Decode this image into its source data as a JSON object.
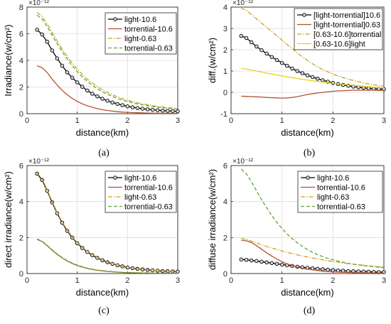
{
  "captions": [
    "(a)",
    "(b)",
    "(c)",
    "(d)"
  ],
  "chart_data": [
    {
      "type": "line",
      "ylabel": "Irradiance(w/cm²)",
      "xlabel": "distance(km)",
      "exponent_label": "×10⁻¹²",
      "xlim": [
        0,
        3
      ],
      "ylim": [
        0,
        8
      ],
      "xticks": [
        "0",
        "1",
        "2",
        "3"
      ],
      "yticks": [
        "0",
        "2",
        "4",
        "6",
        "8"
      ],
      "grid": true,
      "legend_position": "top-right",
      "x": [
        0.2,
        0.3,
        0.4,
        0.5,
        0.6,
        0.7,
        0.8,
        0.9,
        1.0,
        1.1,
        1.2,
        1.3,
        1.4,
        1.5,
        1.6,
        1.7,
        1.8,
        1.9,
        2.0,
        2.1,
        2.2,
        2.3,
        2.4,
        2.5,
        2.6,
        2.7,
        2.8,
        2.9,
        3.0
      ],
      "series": [
        {
          "name": "light-10.6",
          "color": "#000000",
          "dash": "solid",
          "marker": true,
          "values": [
            6.3,
            5.95,
            5.4,
            4.75,
            4.15,
            3.6,
            3.1,
            2.7,
            2.35,
            2.02,
            1.74,
            1.5,
            1.3,
            1.12,
            0.97,
            0.84,
            0.73,
            0.64,
            0.55,
            0.48,
            0.42,
            0.37,
            0.33,
            0.29,
            0.26,
            0.23,
            0.21,
            0.19,
            0.18
          ]
        },
        {
          "name": "torrential-10.6",
          "color": "#b5522f",
          "dash": "solid",
          "marker": false,
          "values": [
            3.6,
            3.45,
            3.1,
            2.6,
            2.15,
            1.75,
            1.42,
            1.15,
            0.92,
            0.74,
            0.6,
            0.48,
            0.38,
            0.3,
            0.24,
            0.19,
            0.15,
            0.12,
            0.1,
            0.08,
            0.07,
            0.06,
            0.05,
            0.04,
            0.04,
            0.03,
            0.03,
            0.03,
            0.02
          ]
        },
        {
          "name": "light-0.63",
          "color": "#c9a227",
          "dash": "dashdot",
          "marker": false,
          "values": [
            7.6,
            7.3,
            6.75,
            6.1,
            5.45,
            4.85,
            4.3,
            3.8,
            3.35,
            2.95,
            2.6,
            2.3,
            2.03,
            1.8,
            1.6,
            1.42,
            1.27,
            1.13,
            1.01,
            0.91,
            0.82,
            0.74,
            0.67,
            0.61,
            0.55,
            0.5,
            0.46,
            0.42,
            0.39
          ]
        },
        {
          "name": "torrential-0.63",
          "color": "#5aa832",
          "dash": "dash",
          "marker": false,
          "values": [
            7.4,
            7.1,
            6.55,
            5.9,
            5.25,
            4.65,
            4.1,
            3.6,
            3.16,
            2.77,
            2.43,
            2.13,
            1.87,
            1.65,
            1.46,
            1.29,
            1.14,
            1.02,
            0.91,
            0.81,
            0.73,
            0.66,
            0.6,
            0.54,
            0.49,
            0.45,
            0.41,
            0.38,
            0.35
          ]
        }
      ]
    },
    {
      "type": "line",
      "ylabel": "diff.(w/cm²)",
      "xlabel": "distance(km)",
      "exponent_label": "×10⁻¹²",
      "xlim": [
        0,
        3
      ],
      "ylim": [
        -1,
        4
      ],
      "xticks": [
        "0",
        "1",
        "2",
        "3"
      ],
      "yticks": [
        "-1",
        "0",
        "1",
        "2",
        "3",
        "4"
      ],
      "grid": true,
      "legend_position": "top-right",
      "x": [
        0.2,
        0.3,
        0.4,
        0.5,
        0.6,
        0.7,
        0.8,
        0.9,
        1.0,
        1.1,
        1.2,
        1.3,
        1.4,
        1.5,
        1.6,
        1.7,
        1.8,
        1.9,
        2.0,
        2.1,
        2.2,
        2.3,
        2.4,
        2.5,
        2.6,
        2.7,
        2.8,
        2.9,
        3.0
      ],
      "series": [
        {
          "name": "[light-torrential]10.6",
          "color": "#000000",
          "dash": "solid",
          "marker": true,
          "values": [
            2.65,
            2.55,
            2.35,
            2.15,
            1.98,
            1.82,
            1.66,
            1.52,
            1.38,
            1.25,
            1.12,
            1.0,
            0.9,
            0.8,
            0.72,
            0.64,
            0.57,
            0.5,
            0.44,
            0.39,
            0.35,
            0.31,
            0.27,
            0.24,
            0.21,
            0.19,
            0.17,
            0.16,
            0.15
          ]
        },
        {
          "name": "[light-torrential]0.63",
          "color": "#b5522f",
          "dash": "solid",
          "marker": false,
          "values": [
            -0.18,
            -0.19,
            -0.2,
            -0.21,
            -0.22,
            -0.24,
            -0.25,
            -0.26,
            -0.27,
            -0.26,
            -0.24,
            -0.2,
            -0.15,
            -0.1,
            -0.06,
            -0.03,
            0.0,
            0.03,
            0.05,
            0.07,
            0.08,
            0.09,
            0.1,
            0.1,
            0.1,
            0.1,
            0.1,
            0.09,
            0.09
          ]
        },
        {
          "name": "[0.63-10.6]torrential",
          "color": "#c9a227",
          "dash": "dashdot",
          "marker": false,
          "values": [
            3.95,
            3.85,
            3.65,
            3.45,
            3.25,
            3.05,
            2.85,
            2.65,
            2.45,
            2.25,
            2.05,
            1.85,
            1.67,
            1.5,
            1.34,
            1.2,
            1.07,
            0.96,
            0.86,
            0.77,
            0.69,
            0.62,
            0.56,
            0.5,
            0.45,
            0.4,
            0.36,
            0.32,
            0.3
          ]
        },
        {
          "name": "[0.63-10.6]light",
          "color": "#e8d21f",
          "dash": "solid",
          "marker": false,
          "values": [
            1.12,
            1.1,
            1.05,
            1.0,
            0.95,
            0.9,
            0.86,
            0.81,
            0.77,
            0.73,
            0.69,
            0.65,
            0.61,
            0.58,
            0.54,
            0.51,
            0.48,
            0.45,
            0.43,
            0.4,
            0.38,
            0.35,
            0.33,
            0.31,
            0.29,
            0.27,
            0.25,
            0.24,
            0.22
          ]
        }
      ]
    },
    {
      "type": "line",
      "ylabel": "direct irradiance(w/cm²)",
      "xlabel": "distance(km)",
      "exponent_label": "×10⁻¹²",
      "xlim": [
        0,
        3
      ],
      "ylim": [
        0,
        6
      ],
      "xticks": [
        "0",
        "1",
        "2",
        "3"
      ],
      "yticks": [
        "0",
        "2",
        "4",
        "6"
      ],
      "grid": true,
      "legend_position": "top-right",
      "x": [
        0.2,
        0.3,
        0.4,
        0.5,
        0.6,
        0.7,
        0.8,
        0.9,
        1.0,
        1.1,
        1.2,
        1.3,
        1.4,
        1.5,
        1.6,
        1.7,
        1.8,
        1.9,
        2.0,
        2.1,
        2.2,
        2.3,
        2.4,
        2.5,
        2.6,
        2.7,
        2.8,
        2.9,
        3.0
      ],
      "series": [
        {
          "name": "light-10.6",
          "color": "#000000",
          "dash": "solid",
          "marker": true,
          "values": [
            5.55,
            5.2,
            4.6,
            3.95,
            3.35,
            2.82,
            2.37,
            2.0,
            1.68,
            1.42,
            1.2,
            1.02,
            0.87,
            0.74,
            0.63,
            0.54,
            0.46,
            0.4,
            0.34,
            0.3,
            0.26,
            0.23,
            0.2,
            0.18,
            0.16,
            0.14,
            0.13,
            0.12,
            0.11
          ]
        },
        {
          "name": "torrential-10.6",
          "color": "#b5522f",
          "dash": "solid",
          "marker": false,
          "values": [
            1.9,
            1.78,
            1.55,
            1.3,
            1.07,
            0.87,
            0.7,
            0.56,
            0.45,
            0.36,
            0.29,
            0.23,
            0.18,
            0.15,
            0.12,
            0.1,
            0.08,
            0.06,
            0.05,
            0.04,
            0.04,
            0.03,
            0.03,
            0.02,
            0.02,
            0.02,
            0.02,
            0.01,
            0.01
          ]
        },
        {
          "name": "light-0.63",
          "color": "#c9a227",
          "dash": "dashdot",
          "marker": false,
          "values": [
            5.6,
            5.25,
            4.65,
            4.0,
            3.4,
            2.87,
            2.42,
            2.04,
            1.72,
            1.46,
            1.24,
            1.06,
            0.9,
            0.77,
            0.66,
            0.57,
            0.49,
            0.42,
            0.37,
            0.32,
            0.28,
            0.25,
            0.22,
            0.19,
            0.17,
            0.15,
            0.14,
            0.13,
            0.12
          ]
        },
        {
          "name": "torrential-0.63",
          "color": "#5aa832",
          "dash": "dash",
          "marker": false,
          "values": [
            1.92,
            1.8,
            1.57,
            1.32,
            1.09,
            0.89,
            0.72,
            0.58,
            0.47,
            0.38,
            0.3,
            0.24,
            0.19,
            0.16,
            0.13,
            0.1,
            0.08,
            0.07,
            0.06,
            0.05,
            0.04,
            0.03,
            0.03,
            0.02,
            0.02,
            0.02,
            0.02,
            0.01,
            0.01
          ]
        }
      ]
    },
    {
      "type": "line",
      "ylabel": "diffuse irradiance(w/cm²)",
      "xlabel": "distance(km)",
      "exponent_label": "×10⁻¹²",
      "xlim": [
        0,
        3
      ],
      "ylim": [
        0,
        6
      ],
      "xticks": [
        "0",
        "1",
        "2",
        "3"
      ],
      "yticks": [
        "0",
        "2",
        "4",
        "6"
      ],
      "grid": true,
      "legend_position": "top-right",
      "x": [
        0.2,
        0.3,
        0.4,
        0.5,
        0.6,
        0.7,
        0.8,
        0.9,
        1.0,
        1.1,
        1.2,
        1.3,
        1.4,
        1.5,
        1.6,
        1.7,
        1.8,
        1.9,
        2.0,
        2.1,
        2.2,
        2.3,
        2.4,
        2.5,
        2.6,
        2.7,
        2.8,
        2.9,
        3.0
      ],
      "series": [
        {
          "name": "light-10.6",
          "color": "#000000",
          "dash": "solid",
          "marker": true,
          "values": [
            0.78,
            0.76,
            0.73,
            0.7,
            0.66,
            0.62,
            0.58,
            0.54,
            0.5,
            0.46,
            0.42,
            0.38,
            0.35,
            0.32,
            0.29,
            0.26,
            0.24,
            0.21,
            0.19,
            0.17,
            0.16,
            0.14,
            0.13,
            0.12,
            0.11,
            0.1,
            0.09,
            0.08,
            0.08
          ]
        },
        {
          "name": "torrential-10.6",
          "color": "#b5522f",
          "dash": "solid",
          "marker": false,
          "values": [
            1.85,
            1.82,
            1.72,
            1.55,
            1.35,
            1.15,
            0.97,
            0.8,
            0.66,
            0.54,
            0.44,
            0.36,
            0.29,
            0.24,
            0.2,
            0.16,
            0.13,
            0.11,
            0.09,
            0.08,
            0.07,
            0.06,
            0.05,
            0.04,
            0.04,
            0.03,
            0.03,
            0.03,
            0.02
          ]
        },
        {
          "name": "light-0.63",
          "color": "#c9a227",
          "dash": "dashdot",
          "marker": false,
          "values": [
            1.95,
            1.9,
            1.8,
            1.7,
            1.6,
            1.5,
            1.42,
            1.34,
            1.26,
            1.18,
            1.11,
            1.04,
            0.98,
            0.92,
            0.86,
            0.81,
            0.76,
            0.71,
            0.67,
            0.63,
            0.59,
            0.55,
            0.52,
            0.49,
            0.46,
            0.43,
            0.4,
            0.38,
            0.36
          ]
        },
        {
          "name": "torrential-0.63",
          "color": "#5aa832",
          "dash": "dash",
          "marker": false,
          "values": [
            5.8,
            5.55,
            5.1,
            4.6,
            4.1,
            3.65,
            3.22,
            2.84,
            2.5,
            2.2,
            1.94,
            1.71,
            1.51,
            1.33,
            1.18,
            1.05,
            0.94,
            0.84,
            0.76,
            0.69,
            0.63,
            0.57,
            0.52,
            0.48,
            0.44,
            0.41,
            0.38,
            0.35,
            0.33
          ]
        }
      ]
    }
  ]
}
